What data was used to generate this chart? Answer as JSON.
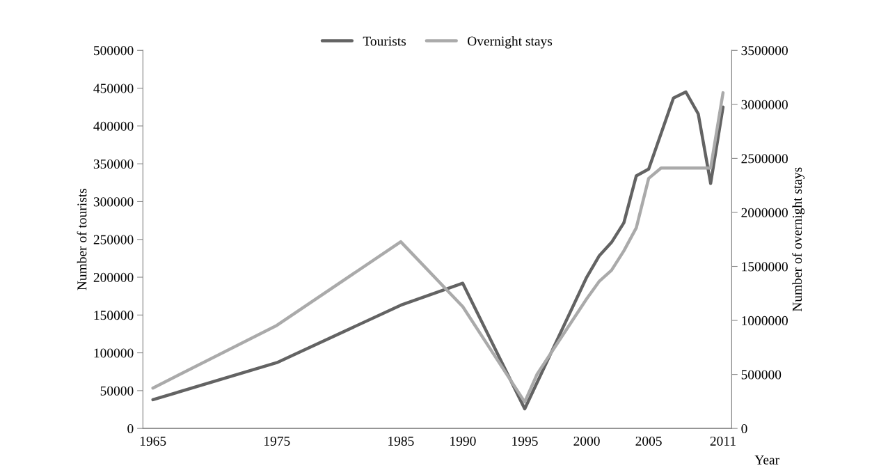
{
  "chart_data": {
    "type": "line",
    "xlabel": "Year",
    "ylabel": "Number of tourists",
    "y2label": "Number of overnight stays",
    "xlim": [
      1964.2,
      2011.7
    ],
    "xticks": [
      1965,
      1975,
      1985,
      1990,
      1995,
      2000,
      2005,
      2011
    ],
    "ylim": [
      0,
      500000
    ],
    "yticks": [
      0,
      50000,
      100000,
      150000,
      200000,
      250000,
      300000,
      350000,
      400000,
      450000,
      500000
    ],
    "y2lim": [
      0,
      3500000
    ],
    "y2ticks": [
      0,
      500000,
      1000000,
      1500000,
      2000000,
      2500000,
      3000000,
      3500000
    ],
    "legend": "top",
    "grid": false,
    "marker": "none",
    "line_style": "solid",
    "series": [
      {
        "name": "Tourists",
        "color": "#636363",
        "x": [
          1965,
          1975,
          1985,
          1990,
          1995,
          2000,
          2001,
          2002,
          2003,
          2004,
          2005,
          2007,
          2008,
          2009,
          2010,
          2011
        ],
        "values": [
          38000,
          87000,
          163000,
          192000,
          26000,
          200000,
          228000,
          246000,
          272000,
          334000,
          343000,
          437000,
          445000,
          416000,
          324000,
          425000
        ]
      },
      {
        "name": "Overnight stays",
        "color": "#aaaaaa",
        "axis": "y2",
        "x": [
          1965,
          1975,
          1985,
          1990,
          1995,
          1996,
          2000,
          2001,
          2002,
          2003,
          2004,
          2005,
          2006,
          2007,
          2008,
          2009,
          2010,
          2011
        ],
        "values": [
          374000,
          954000,
          1728000,
          1128000,
          245000,
          503000,
          1200000,
          1360000,
          1464000,
          1644000,
          1857000,
          2315000,
          2411000,
          2411000,
          2411000,
          2411000,
          2411000,
          3108000
        ]
      }
    ]
  }
}
